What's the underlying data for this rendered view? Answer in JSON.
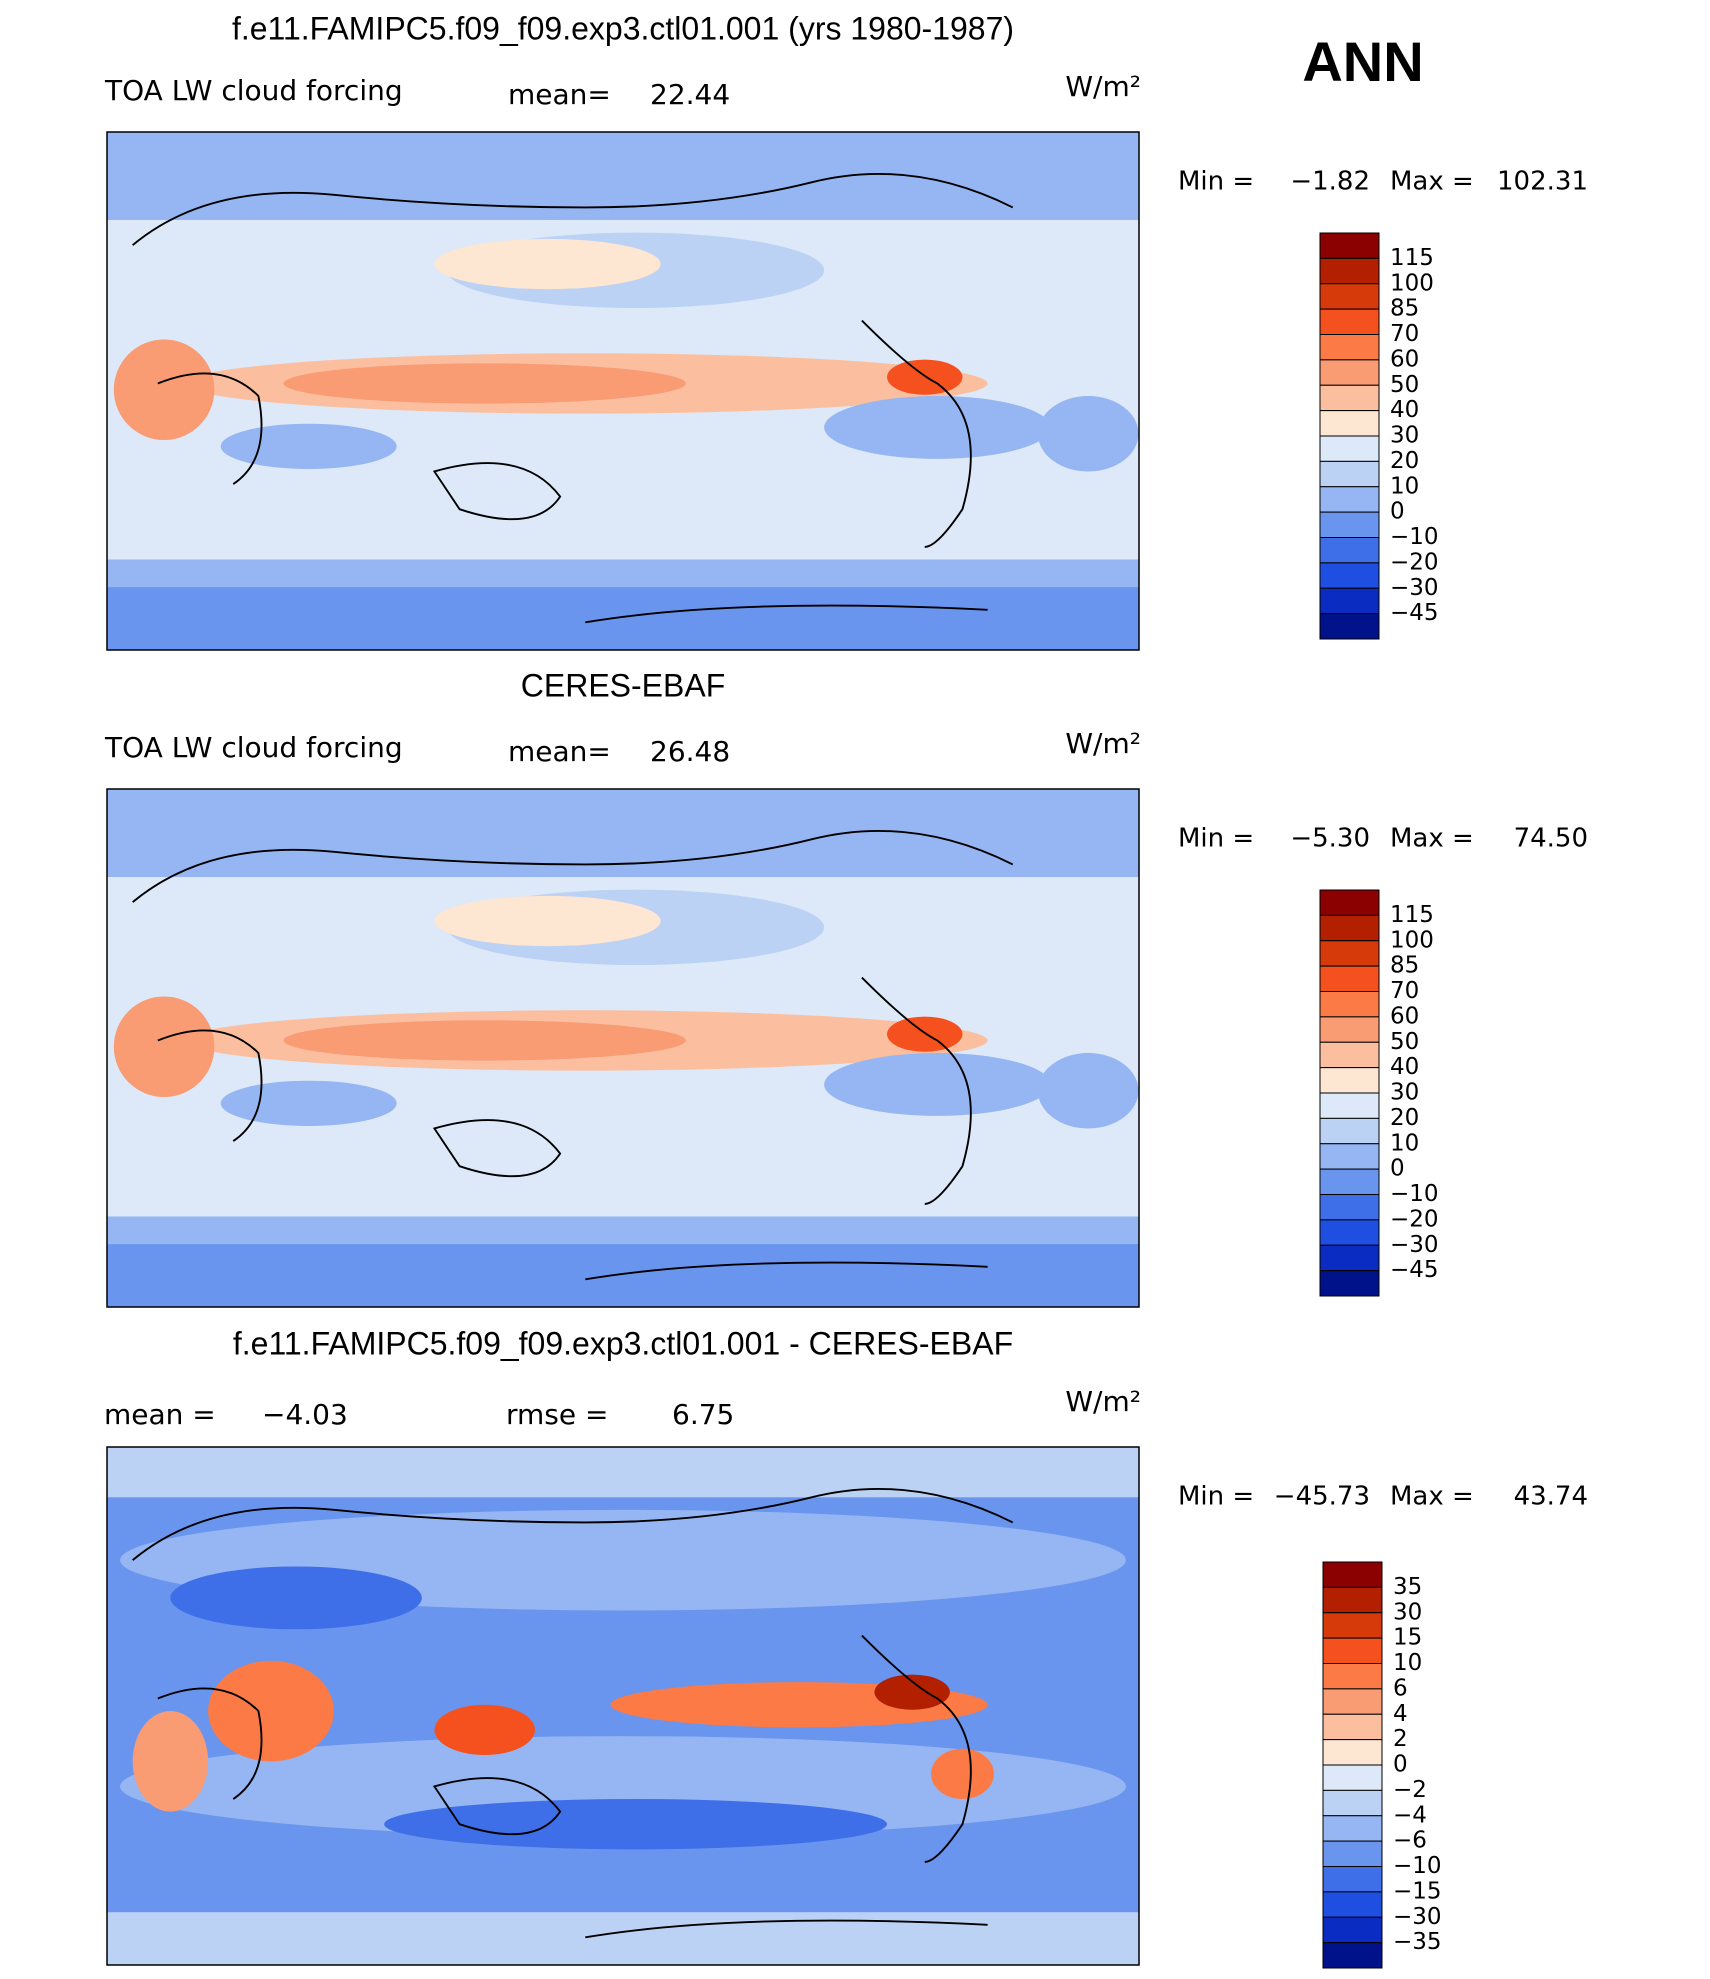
{
  "label": "ANN",
  "panels": [
    {
      "title": "f.e11.FAMIPC5.f09_f09.exp3.ctl01.001 (yrs 1980-1987)",
      "field": "TOA LW cloud forcing",
      "stats": [
        {
          "label": "mean=",
          "value": "22.44"
        }
      ],
      "units": "W/m²",
      "min_label": "Min =",
      "min": "−1.82",
      "max_label": "Max =",
      "max": "102.31",
      "colorbar": {
        "labels": [
          "115",
          "100",
          "85",
          "70",
          "60",
          "50",
          "40",
          "30",
          "20",
          "10",
          "0",
          "−10",
          "−20",
          "−30",
          "−45"
        ],
        "colors": [
          "#8b0000",
          "#b22000",
          "#d63a0a",
          "#f4511e",
          "#fb7a45",
          "#f99b73",
          "#fbbfa0",
          "#fde6d2",
          "#dde9f8",
          "#bcd2f5",
          "#95b6f2",
          "#6a95ee",
          "#3f6fe8",
          "#1f4fe0",
          "#0a2cc0",
          "#00128a"
        ]
      }
    },
    {
      "title": "CERES-EBAF",
      "field": "TOA LW cloud forcing",
      "stats": [
        {
          "label": "mean=",
          "value": "26.48"
        }
      ],
      "units": "W/m²",
      "min_label": "Min =",
      "min": "−5.30",
      "max_label": "Max =",
      "max": "74.50",
      "colorbar": {
        "labels": [
          "115",
          "100",
          "85",
          "70",
          "60",
          "50",
          "40",
          "30",
          "20",
          "10",
          "0",
          "−10",
          "−20",
          "−30",
          "−45"
        ],
        "colors": [
          "#8b0000",
          "#b22000",
          "#d63a0a",
          "#f4511e",
          "#fb7a45",
          "#f99b73",
          "#fbbfa0",
          "#fde6d2",
          "#dde9f8",
          "#bcd2f5",
          "#95b6f2",
          "#6a95ee",
          "#3f6fe8",
          "#1f4fe0",
          "#0a2cc0",
          "#00128a"
        ]
      }
    },
    {
      "title": "f.e11.FAMIPC5.f09_f09.exp3.ctl01.001 - CERES-EBAF",
      "stats": [
        {
          "label": "mean =",
          "value": "−4.03"
        },
        {
          "label": "rmse =",
          "value": "6.75"
        }
      ],
      "units": "W/m²",
      "min_label": "Min =",
      "min": "−45.73",
      "max_label": "Max =",
      "max": "43.74",
      "colorbar": {
        "labels": [
          "35",
          "30",
          "15",
          "10",
          "6",
          "4",
          "2",
          "0",
          "−2",
          "−4",
          "−6",
          "−10",
          "−15",
          "−30",
          "−35"
        ],
        "colors": [
          "#8b0000",
          "#b22000",
          "#d63a0a",
          "#f4511e",
          "#fb7a45",
          "#f99b73",
          "#fbbfa0",
          "#fde6d2",
          "#dde9f8",
          "#bcd2f5",
          "#95b6f2",
          "#6a95ee",
          "#3f6fe8",
          "#1f4fe0",
          "#0a2cc0",
          "#00128a"
        ]
      }
    }
  ]
}
